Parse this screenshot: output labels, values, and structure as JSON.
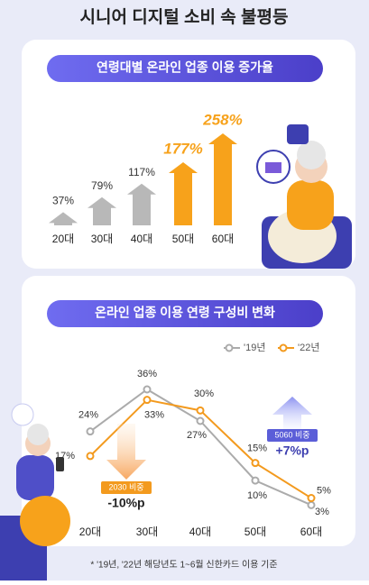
{
  "title": "시니어 디지털 소비 속 불평등",
  "footnote": "* '19년, '22년 해당년도 1~6월 신한카드 이용 기준",
  "chart_data": [
    {
      "type": "bar",
      "title": "연령대별 온라인 업종 이용 증가율",
      "categories": [
        "20대",
        "30대",
        "40대",
        "50대",
        "60대"
      ],
      "values": [
        37,
        79,
        117,
        177,
        258
      ],
      "value_labels": [
        "37%",
        "79%",
        "117%",
        "177%",
        "258%"
      ],
      "colors": [
        "#b8b8b8",
        "#b8b8b8",
        "#b8b8b8",
        "#f7a21b",
        "#f7a21b"
      ]
    },
    {
      "type": "line",
      "title": "온라인 업종 이용 연령 구성비 변화",
      "categories": [
        "20대",
        "30대",
        "40대",
        "50대",
        "60대"
      ],
      "series": [
        {
          "name": "'19년",
          "color": "#ababab",
          "values": [
            24,
            36,
            27,
            10,
            3
          ],
          "value_labels": [
            "24%",
            "36%",
            "27%",
            "10%",
            "3%"
          ]
        },
        {
          "name": "'22년",
          "color": "#f39a1e",
          "values": [
            17,
            33,
            30,
            15,
            5
          ],
          "value_labels": [
            "17%",
            "33%",
            "30%",
            "15%",
            "5%"
          ]
        }
      ],
      "annotations": [
        {
          "label": "2030 비중",
          "text": "-10%p"
        },
        {
          "label": "5060 비중",
          "text": "+7%p"
        }
      ]
    }
  ]
}
